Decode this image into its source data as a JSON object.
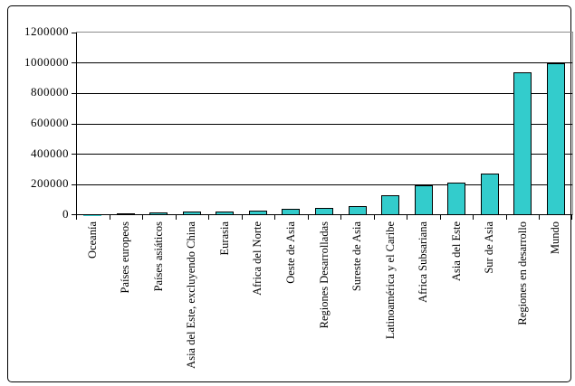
{
  "chart_data": {
    "type": "bar",
    "title": "",
    "xlabel": "",
    "ylabel": "",
    "categories": [
      "Oceanía",
      "Países europeos",
      "Países asiáticos",
      "Asia del Este, excluyendo China",
      "Eurasia",
      "Africa del Norte",
      "Oeste de Asia",
      "Regiones Desarrolladas",
      "Sureste de Asia",
      "Latinoamérica y el Caribe",
      "Africa Subsariana",
      "Asia del Este",
      "Sur de Asia",
      "Regiones en desarrollo",
      "Mundo"
    ],
    "values": [
      2000,
      12000,
      20000,
      25000,
      26000,
      32000,
      42000,
      45000,
      57000,
      128000,
      197000,
      212000,
      275000,
      940000,
      1000000
    ],
    "yticks": [
      0,
      200000,
      400000,
      600000,
      800000,
      1000000,
      1200000
    ],
    "ylim": [
      0,
      1200000
    ],
    "grid": "on",
    "legend": "none",
    "bar_color": "#33CCCC",
    "bar_border_color": "#000000",
    "gridline_color": "#000000",
    "plot_border_color": "#8c8c8c",
    "axis_color": "#000000"
  }
}
